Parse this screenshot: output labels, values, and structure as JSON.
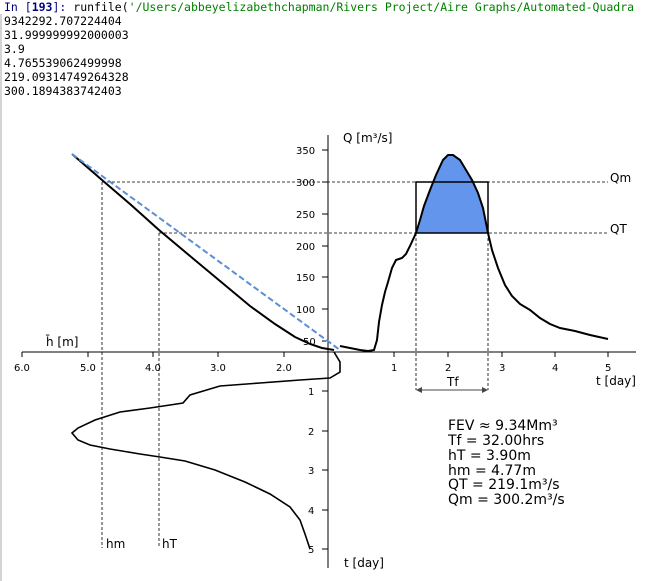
{
  "console": {
    "prompt_prefix": "In [",
    "prompt_number": "193",
    "prompt_suffix": "]: ",
    "command_fn": "runfile(",
    "command_arg": "'/Users/abbeyelizabethchapman/Rivers Project/Aire Graphs/Automated-Quadra",
    "output_lines": [
      "9342292.707224404",
      "31.999999992000003",
      "3.9",
      "4.765539062499998",
      "219.09314749264328",
      "300.1894383742403"
    ]
  },
  "plot": {
    "q_axis_label": "Q [m³/s]",
    "t_axis_label_right": "t [day]",
    "t_axis_label_bottom": "t [day]",
    "h_axis_label": "h̄ [m]",
    "qm_label": "Qm",
    "qt_label": "QT",
    "tf_label": "Tf",
    "hm_label": "hm",
    "ht_label": "hT",
    "q_ticks": [
      "350",
      "300",
      "250",
      "200",
      "150",
      "100",
      "50"
    ],
    "t_ticks_right": [
      "1",
      "2",
      "3",
      "4",
      "5"
    ],
    "h_ticks": [
      "6.0",
      "5.0",
      "4.0",
      "3.0",
      "2.0"
    ],
    "t_ticks_bottom": [
      "1",
      "2",
      "3",
      "4",
      "5"
    ],
    "colors": {
      "fill": "#6495ed",
      "dashed_line": "#5b8fd6",
      "curve": "#000000"
    }
  },
  "annotations": {
    "fev": "FEV ≈ 9.34Mm³",
    "tf": "Tf = 32.00hrs",
    "ht": "hT = 3.90m",
    "hm": "hm = 4.77m",
    "qt": "QT = 219.1m³/s",
    "qm": "Qm = 300.2m³/s"
  }
}
